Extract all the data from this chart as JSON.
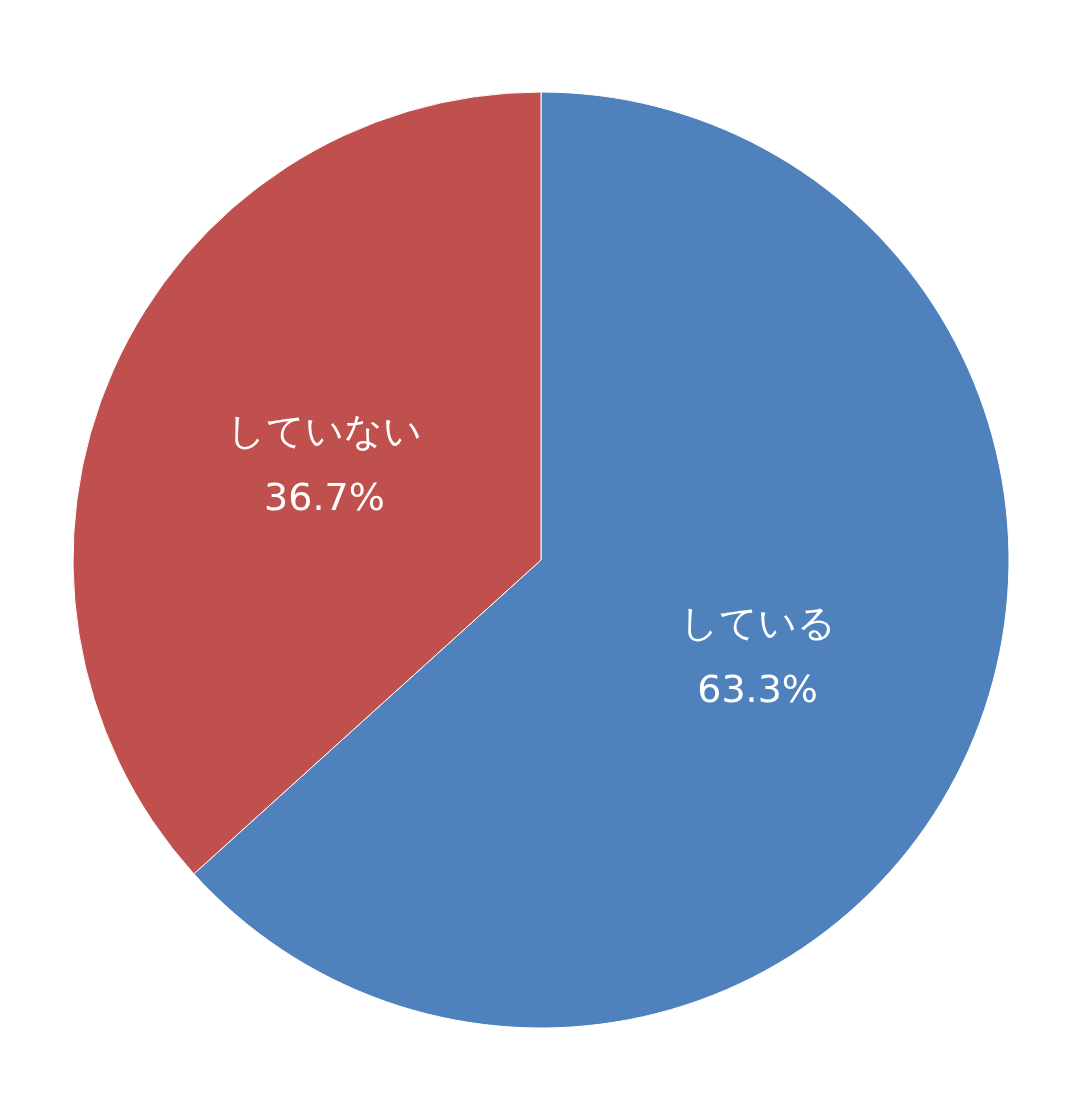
{
  "chart_data": {
    "type": "pie",
    "categories": [
      "している",
      "していない"
    ],
    "values": [
      63.3,
      36.7
    ],
    "colors": [
      "#4f81bd",
      "#c0504d"
    ],
    "value_labels": [
      "63.3%",
      "36.7%"
    ]
  }
}
